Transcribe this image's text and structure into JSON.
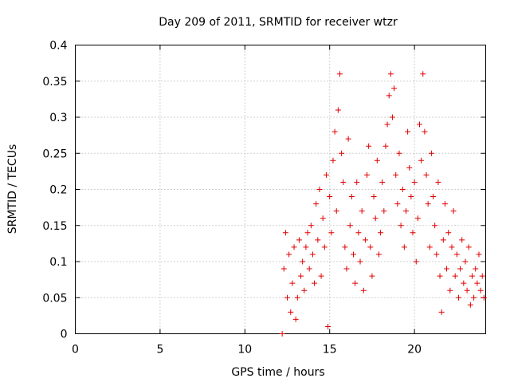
{
  "chart_data": {
    "type": "scatter",
    "title": "Day 209 of 2011, SRMTID for receiver wtzr",
    "xlabel": "GPS time / hours",
    "ylabel": "SRMTID / TECUs",
    "xlim": [
      0,
      24.2
    ],
    "ylim": [
      0,
      0.4
    ],
    "grid": true,
    "marker": "+",
    "color": "#e00000",
    "x_ticks": [
      0,
      5,
      10,
      15,
      20
    ],
    "x_tick_labels": [
      "0",
      "5",
      "10",
      "15",
      "20"
    ],
    "y_ticks": [
      0,
      0.05,
      0.1,
      0.15,
      0.2,
      0.25,
      0.3,
      0.35,
      0.4
    ],
    "y_tick_labels": [
      "0",
      "0.05",
      "0.1",
      "0.15",
      "0.2",
      "0.25",
      "0.3",
      "0.35",
      "0.4"
    ],
    "series": [
      {
        "name": "SRMTID",
        "points": [
          [
            12.2,
            0.0
          ],
          [
            12.3,
            0.09
          ],
          [
            12.4,
            0.14
          ],
          [
            12.5,
            0.05
          ],
          [
            12.6,
            0.11
          ],
          [
            12.7,
            0.03
          ],
          [
            12.8,
            0.07
          ],
          [
            12.9,
            0.12
          ],
          [
            13.0,
            0.02
          ],
          [
            13.1,
            0.05
          ],
          [
            13.2,
            0.13
          ],
          [
            13.3,
            0.08
          ],
          [
            13.4,
            0.1
          ],
          [
            13.5,
            0.06
          ],
          [
            13.6,
            0.12
          ],
          [
            13.7,
            0.14
          ],
          [
            13.8,
            0.09
          ],
          [
            13.9,
            0.15
          ],
          [
            14.0,
            0.11
          ],
          [
            14.1,
            0.07
          ],
          [
            14.2,
            0.18
          ],
          [
            14.3,
            0.13
          ],
          [
            14.4,
            0.2
          ],
          [
            14.5,
            0.08
          ],
          [
            14.6,
            0.16
          ],
          [
            14.7,
            0.12
          ],
          [
            14.8,
            0.22
          ],
          [
            14.9,
            0.01
          ],
          [
            15.0,
            0.19
          ],
          [
            15.1,
            0.14
          ],
          [
            15.2,
            0.24
          ],
          [
            15.3,
            0.28
          ],
          [
            15.4,
            0.17
          ],
          [
            15.5,
            0.31
          ],
          [
            15.6,
            0.36
          ],
          [
            15.7,
            0.25
          ],
          [
            15.8,
            0.21
          ],
          [
            15.9,
            0.12
          ],
          [
            16.0,
            0.09
          ],
          [
            16.1,
            0.27
          ],
          [
            16.2,
            0.15
          ],
          [
            16.3,
            0.19
          ],
          [
            16.4,
            0.11
          ],
          [
            16.5,
            0.07
          ],
          [
            16.6,
            0.21
          ],
          [
            16.7,
            0.14
          ],
          [
            16.8,
            0.1
          ],
          [
            16.9,
            0.17
          ],
          [
            17.0,
            0.06
          ],
          [
            17.1,
            0.13
          ],
          [
            17.2,
            0.22
          ],
          [
            17.3,
            0.26
          ],
          [
            17.4,
            0.12
          ],
          [
            17.5,
            0.08
          ],
          [
            17.6,
            0.19
          ],
          [
            17.7,
            0.16
          ],
          [
            17.8,
            0.24
          ],
          [
            17.9,
            0.11
          ],
          [
            18.0,
            0.14
          ],
          [
            18.1,
            0.21
          ],
          [
            18.2,
            0.17
          ],
          [
            18.3,
            0.26
          ],
          [
            18.4,
            0.29
          ],
          [
            18.5,
            0.33
          ],
          [
            18.6,
            0.36
          ],
          [
            18.7,
            0.3
          ],
          [
            18.8,
            0.34
          ],
          [
            18.9,
            0.22
          ],
          [
            19.0,
            0.18
          ],
          [
            19.1,
            0.25
          ],
          [
            19.2,
            0.15
          ],
          [
            19.3,
            0.2
          ],
          [
            19.4,
            0.12
          ],
          [
            19.5,
            0.17
          ],
          [
            19.6,
            0.28
          ],
          [
            19.7,
            0.23
          ],
          [
            19.8,
            0.19
          ],
          [
            19.9,
            0.14
          ],
          [
            20.0,
            0.21
          ],
          [
            20.1,
            0.1
          ],
          [
            20.2,
            0.16
          ],
          [
            20.3,
            0.29
          ],
          [
            20.4,
            0.24
          ],
          [
            20.5,
            0.36
          ],
          [
            20.6,
            0.28
          ],
          [
            20.7,
            0.22
          ],
          [
            20.8,
            0.18
          ],
          [
            20.9,
            0.12
          ],
          [
            21.0,
            0.25
          ],
          [
            21.1,
            0.19
          ],
          [
            21.2,
            0.15
          ],
          [
            21.3,
            0.11
          ],
          [
            21.4,
            0.21
          ],
          [
            21.5,
            0.08
          ],
          [
            21.6,
            0.03
          ],
          [
            21.7,
            0.13
          ],
          [
            21.8,
            0.18
          ],
          [
            21.9,
            0.09
          ],
          [
            22.0,
            0.14
          ],
          [
            22.1,
            0.06
          ],
          [
            22.2,
            0.12
          ],
          [
            22.3,
            0.17
          ],
          [
            22.4,
            0.08
          ],
          [
            22.5,
            0.11
          ],
          [
            22.6,
            0.05
          ],
          [
            22.7,
            0.09
          ],
          [
            22.8,
            0.13
          ],
          [
            22.9,
            0.07
          ],
          [
            23.0,
            0.1
          ],
          [
            23.1,
            0.06
          ],
          [
            23.2,
            0.12
          ],
          [
            23.3,
            0.04
          ],
          [
            23.4,
            0.08
          ],
          [
            23.5,
            0.05
          ],
          [
            23.6,
            0.09
          ],
          [
            23.7,
            0.07
          ],
          [
            23.8,
            0.11
          ],
          [
            23.9,
            0.06
          ],
          [
            24.0,
            0.08
          ],
          [
            24.1,
            0.05
          ]
        ]
      }
    ]
  }
}
